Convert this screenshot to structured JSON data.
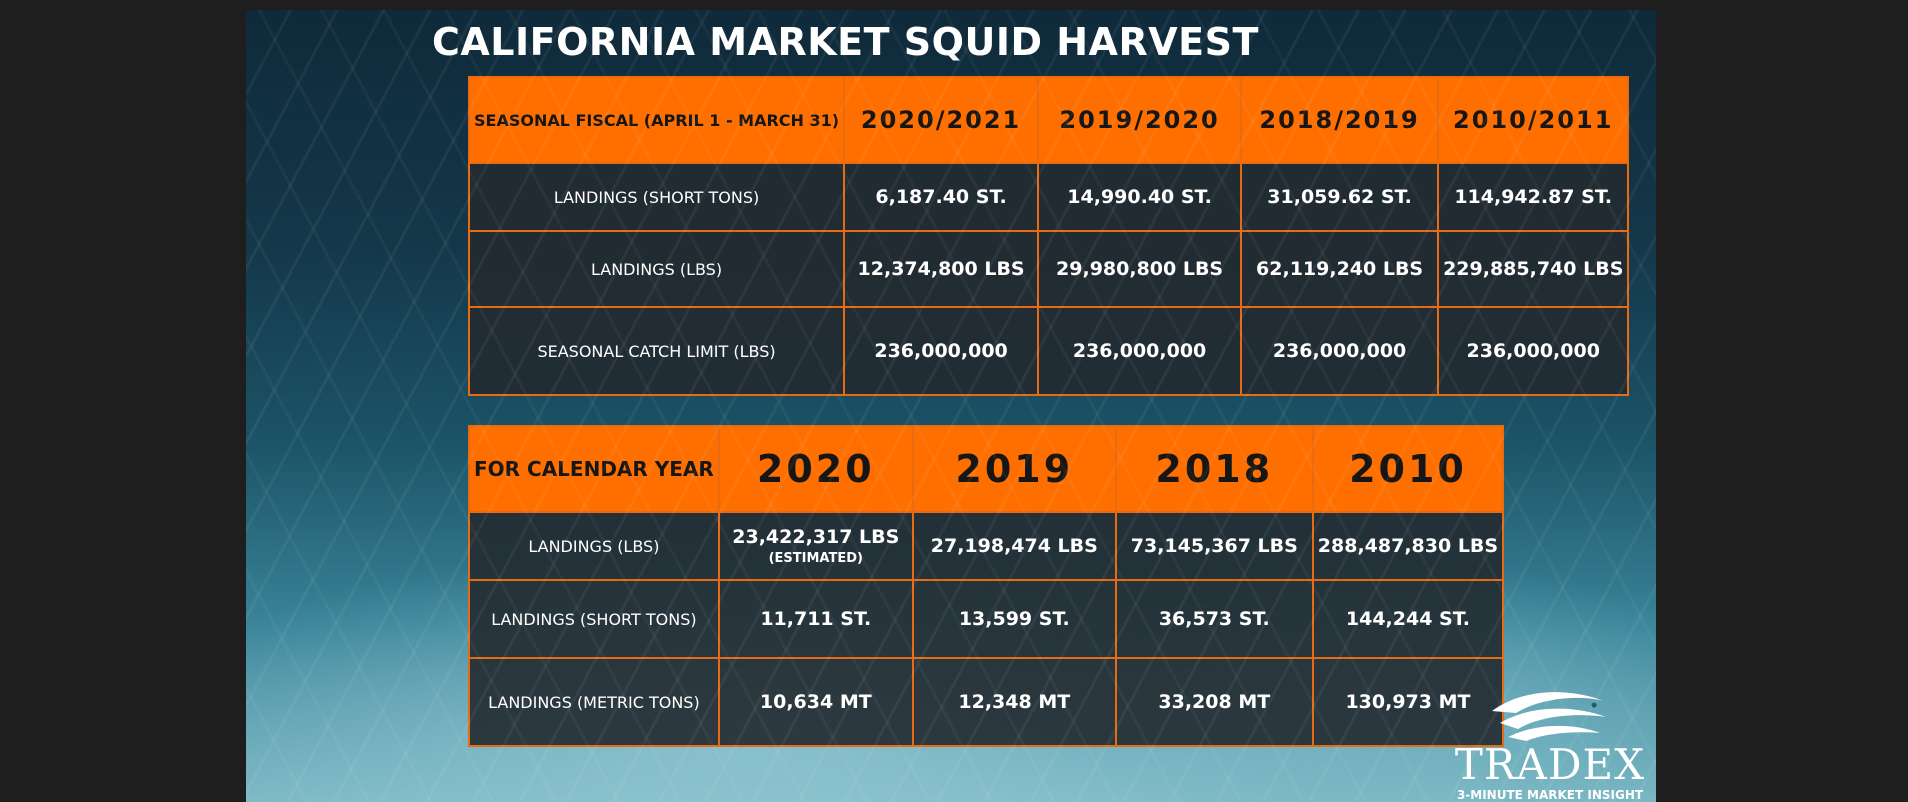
{
  "title": "CALIFORNIA MARKET SQUID HARVEST",
  "fiscal_table": {
    "header_label": "SEASONAL FISCAL (APRIL 1 - MARCH 31)",
    "columns": [
      "2020/2021",
      "2019/2020",
      "2018/2019",
      "2010/2011"
    ],
    "rows": [
      {
        "label": "LANDINGS (SHORT TONS)",
        "values": [
          "6,187.40 ST.",
          "14,990.40 ST.",
          "31,059.62 ST.",
          "114,942.87 ST."
        ]
      },
      {
        "label": "LANDINGS (LBS)",
        "values": [
          "12,374,800 LBS",
          "29,980,800 LBS",
          "62,119,240 LBS",
          "229,885,740 LBS"
        ]
      },
      {
        "label": "SEASONAL CATCH LIMIT (LBS)",
        "values": [
          "236,000,000",
          "236,000,000",
          "236,000,000",
          "236,000,000"
        ]
      }
    ]
  },
  "calendar_table": {
    "header_label": "FOR CALENDAR YEAR",
    "columns": [
      "2020",
      "2019",
      "2018",
      "2010"
    ],
    "rows": [
      {
        "label": "LANDINGS (LBS)",
        "values": [
          "23,422,317 LBS",
          "27,198,474 LBS",
          "73,145,367 LBS",
          "288,487,830 LBS"
        ],
        "notes": [
          "(ESTIMATED)",
          "",
          "",
          ""
        ]
      },
      {
        "label": "LANDINGS (SHORT TONS)",
        "values": [
          "11,711 ST.",
          "13,599 ST.",
          "36,573 ST.",
          "144,244 ST."
        ]
      },
      {
        "label": "LANDINGS (METRIC TONS)",
        "values": [
          "10,634 MT",
          "12,348 MT",
          "33,208 MT",
          "130,973 MT"
        ]
      }
    ]
  },
  "logo": {
    "name": "TRADEX",
    "tagline": "3-MINUTE MARKET INSIGHT",
    "icon": "fish-wave-icon"
  },
  "colors": {
    "header_orange": "#ff6f00",
    "border_orange": "#e86a12",
    "cell_dark": "#222a30",
    "text_white": "#ffffff"
  }
}
